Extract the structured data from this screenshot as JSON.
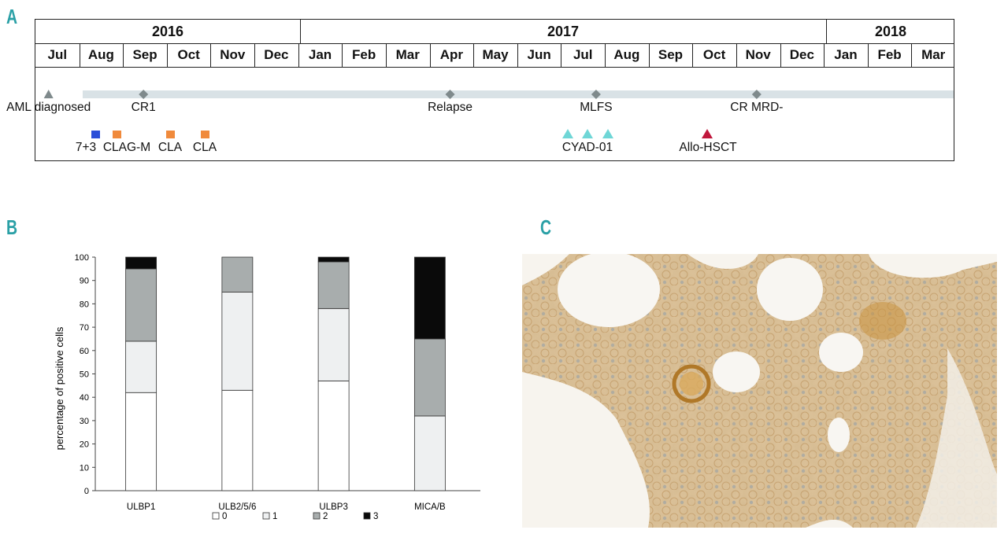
{
  "panels": {
    "a": "A",
    "b": "B",
    "c": "C"
  },
  "timeline": {
    "years": [
      "2016",
      "2017",
      "2018"
    ],
    "months": [
      "Jul",
      "Aug",
      "Sep",
      "Oct",
      "Nov",
      "Dec",
      "Jan",
      "Feb",
      "Mar",
      "Apr",
      "May",
      "Jun",
      "Jul",
      "Aug",
      "Sep",
      "Oct",
      "Nov",
      "Dec",
      "Jan",
      "Feb",
      "Mar"
    ],
    "milestones": [
      {
        "label": "AML diagnosed",
        "date": "2016-07-10",
        "marker": "triangle"
      },
      {
        "label": "CR1",
        "date": "2016-09-15",
        "marker": "diamond"
      },
      {
        "label": "Relapse",
        "date": "2017-04-15",
        "marker": "diamond"
      },
      {
        "label": "MLFS",
        "date": "2017-07-25",
        "marker": "diamond"
      },
      {
        "label": "CR MRD-",
        "date": "2017-11-15",
        "marker": "diamond"
      }
    ],
    "treatments": [
      "7+3",
      "CLAG-M",
      "CLA",
      "CLA",
      "CYAD-01",
      "Allo-HSCT"
    ],
    "colors": {
      "arrow": "#d9e2e6",
      "milestone_marker": "#7f8a8c",
      "induction": "#2a4ed8",
      "consolidation": "#f08a3c",
      "cyad": "#6fd6d6",
      "transplant": "#c0173c"
    }
  },
  "chart_data": {
    "type": "bar",
    "stacked": true,
    "categories": [
      "ULBP1",
      "ULB2/5/6",
      "ULBP3",
      "MICA/B"
    ],
    "series": [
      {
        "name": "0",
        "values": [
          42,
          43,
          47,
          0
        ],
        "color": "#ffffff"
      },
      {
        "name": "1",
        "values": [
          22,
          42,
          31,
          32
        ],
        "color": "#eef0f1"
      },
      {
        "name": "2",
        "values": [
          31,
          15,
          20,
          33
        ],
        "color": "#a8adad"
      },
      {
        "name": "3",
        "values": [
          5,
          0,
          2,
          35
        ],
        "color": "#0a0a0a"
      }
    ],
    "ylabel": "percentage of positive cells",
    "ylim": [
      0,
      100
    ],
    "yticks": [
      0,
      10,
      20,
      30,
      40,
      50,
      60,
      70,
      80,
      90,
      100
    ],
    "grid": false,
    "legend_position": "bottom"
  },
  "image_c": {
    "stain_color": "#c89a5a",
    "background_color": "#f6f2ea",
    "nuclei_color": "#6f8fae"
  }
}
